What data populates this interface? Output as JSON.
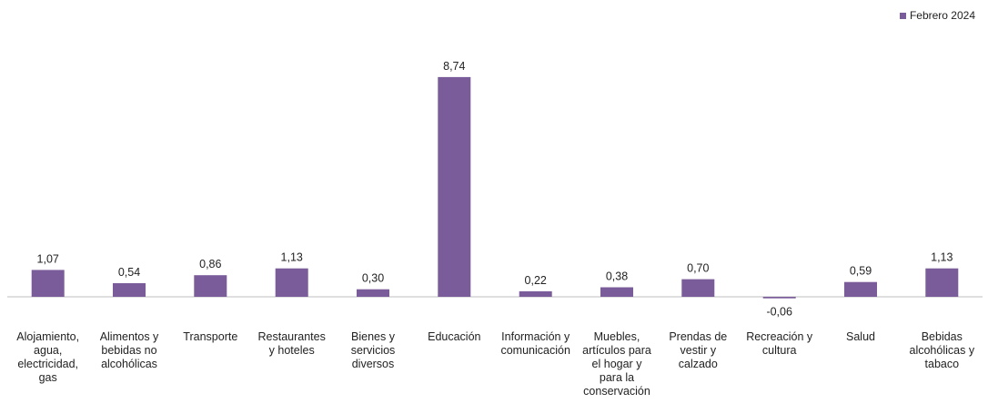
{
  "chart_data": {
    "type": "bar",
    "categories": [
      "Alojamiento, agua, electricidad, gas",
      "Alimentos y bebidas no alcohólicas",
      "Transporte",
      "Restaurantes y hoteles",
      "Bienes y servicios diversos",
      "Educación",
      "Información y comunicación",
      "Muebles, artículos para el hogar y para la conservación",
      "Prendas de vestir y calzado",
      "Recreación y cultura",
      "Salud",
      "Bebidas alcohólicas y tabaco"
    ],
    "category_lines": [
      [
        "Alojamiento,",
        "agua,",
        "electricidad,",
        "gas"
      ],
      [
        "Alimentos y",
        "bebidas no",
        "alcohólicas"
      ],
      [
        "Transporte"
      ],
      [
        "Restaurantes",
        "y hoteles"
      ],
      [
        "Bienes y",
        "servicios",
        "diversos"
      ],
      [
        "Educación"
      ],
      [
        "Información y",
        "comunicación"
      ],
      [
        "Muebles,",
        "artículos para",
        "el hogar y",
        "para la",
        "conservación"
      ],
      [
        "Prendas de",
        "vestir y",
        "calzado"
      ],
      [
        "Recreación y",
        "cultura"
      ],
      [
        "Salud"
      ],
      [
        "Bebidas",
        "alcohólicas y",
        "tabaco"
      ]
    ],
    "series": [
      {
        "name": "Febrero 2024",
        "values": [
          1.07,
          0.54,
          0.86,
          1.13,
          0.3,
          8.74,
          0.22,
          0.38,
          0.7,
          -0.06,
          0.59,
          1.13
        ],
        "labels": [
          "1,07",
          "0,54",
          "0,86",
          "1,13",
          "0,30",
          "8,74",
          "0,22",
          "0,38",
          "0,70",
          "-0,06",
          "0,59",
          "1,13"
        ]
      }
    ],
    "ylim": [
      -0.06,
      8.74
    ],
    "grid": false,
    "legend_position": "top-right",
    "bar_color": "#7b5c9a"
  },
  "legend": {
    "label": "Febrero 2024"
  }
}
